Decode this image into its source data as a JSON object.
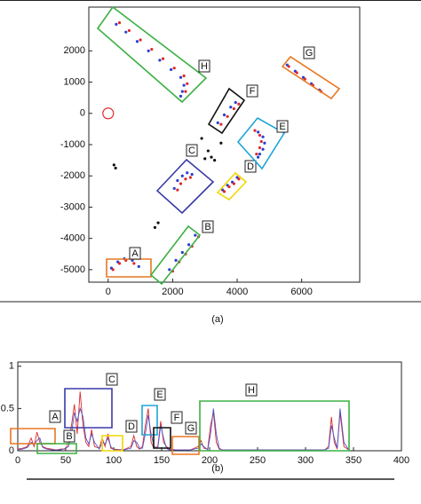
{
  "chart_data": [
    {
      "type": "scatter",
      "caption": "(a)",
      "xlim": [
        -600,
        7800
      ],
      "ylim": [
        -5400,
        3400
      ],
      "xticks": [
        0,
        2000,
        4000,
        6000
      ],
      "yticks": [
        -5000,
        -4000,
        -3000,
        -2000,
        -1000,
        0,
        1000,
        2000
      ],
      "grid": false,
      "series": [
        {
          "color": "#2b3fd1",
          "marker": "dot",
          "x": [
            250,
            550,
            900,
            1250,
            1600,
            1950,
            2250,
            2350,
            2300,
            2250,
            3400,
            3600,
            3800,
            3950,
            5550,
            5800,
            6050,
            6300,
            6550,
            4650,
            4800,
            4850,
            4800,
            4700,
            4650,
            3550,
            3700,
            3850,
            4000,
            2050,
            2150,
            2300,
            2450,
            2600,
            1900,
            2100,
            2300,
            2500,
            2700,
            100,
            300,
            500,
            750,
            950
          ],
          "y": [
            2850,
            2600,
            2300,
            2000,
            1700,
            1400,
            1150,
            900,
            700,
            550,
            -300,
            -50,
            200,
            350,
            1550,
            1350,
            1150,
            950,
            750,
            -600,
            -750,
            -950,
            -1150,
            -1300,
            -1400,
            -2450,
            -2300,
            -2200,
            -2050,
            -2400,
            -2150,
            -2000,
            -1900,
            -1950,
            -5000,
            -4700,
            -4450,
            -4200,
            -3900,
            -4950,
            -4750,
            -4650,
            -4700,
            -4900
          ]
        },
        {
          "color": "#e0282c",
          "marker": "dot",
          "x": [
            350,
            650,
            1000,
            1350,
            1700,
            2050,
            2350,
            2450,
            2400,
            3500,
            3700,
            3900,
            4050,
            5600,
            5850,
            6100,
            6350,
            6600,
            4550,
            4700,
            4750,
            4700,
            4600,
            3600,
            3750,
            3900,
            4050,
            2150,
            2250,
            2400,
            2550,
            2000,
            2200,
            2400,
            2600,
            2800,
            150,
            350,
            550,
            800
          ],
          "y": [
            2900,
            2650,
            2350,
            2050,
            1750,
            1450,
            1200,
            950,
            700,
            -350,
            -100,
            150,
            300,
            1500,
            1300,
            1100,
            900,
            700,
            -550,
            -700,
            -900,
            -1100,
            -1300,
            -2500,
            -2350,
            -2250,
            -2100,
            -2450,
            -2250,
            -2100,
            -2050,
            -5050,
            -4750,
            -4500,
            -4250,
            -3950,
            -5000,
            -4800,
            -4700,
            -4800
          ]
        },
        {
          "color": "#111111",
          "marker": "dot",
          "x": [
            180,
            230,
            1450,
            1550,
            3000,
            3100,
            3200,
            3300,
            2900,
            3500
          ],
          "y": [
            -1650,
            -1750,
            -3650,
            -3500,
            -1450,
            -1200,
            -1400,
            -1500,
            -800,
            -950
          ]
        },
        {
          "color": "#e0282c",
          "marker": "open",
          "x": [
            0
          ],
          "y": [
            0
          ]
        }
      ],
      "annotations": [
        {
          "label": "A",
          "color": "#e87722"
        },
        {
          "label": "B",
          "color": "#3cb043"
        },
        {
          "label": "C",
          "color": "#3a3aa8"
        },
        {
          "label": "D",
          "color": "#f2d600"
        },
        {
          "label": "E",
          "color": "#1ea5d6"
        },
        {
          "label": "F",
          "color": "#111111"
        },
        {
          "label": "G",
          "color": "#e87722"
        },
        {
          "label": "H",
          "color": "#3cb043"
        }
      ]
    },
    {
      "type": "line",
      "caption": "(b)",
      "xlim": [
        0,
        400
      ],
      "ylim": [
        0,
        1.05
      ],
      "xticks": [
        0,
        50,
        100,
        150,
        200,
        250,
        300,
        350,
        400
      ],
      "yticks": [
        0,
        0.5,
        1
      ],
      "x": [
        0,
        5,
        10,
        14,
        17,
        20,
        23,
        26,
        30,
        35,
        40,
        45,
        50,
        53,
        56,
        59,
        62,
        65,
        68,
        71,
        74,
        77,
        80,
        85,
        88,
        91,
        94,
        97,
        100,
        110,
        118,
        121,
        124,
        127,
        130,
        133,
        136,
        139,
        142,
        146,
        149,
        152,
        155,
        158,
        165,
        180,
        188,
        191,
        194,
        198,
        201,
        204,
        207,
        210,
        213,
        220,
        260,
        300,
        320,
        324,
        327,
        330,
        333,
        336,
        340,
        345
      ],
      "series": [
        {
          "color": "#e0282c",
          "values": [
            0.02,
            0.03,
            0.05,
            0.15,
            0.05,
            0.22,
            0.1,
            0.05,
            0.03,
            0.02,
            0.01,
            0.02,
            0.02,
            0.1,
            0.3,
            0.55,
            0.2,
            0.7,
            0.3,
            0.1,
            0.05,
            0.25,
            0.05,
            0.03,
            0.15,
            0.05,
            0.2,
            0.03,
            0.02,
            0.01,
            0.05,
            0.18,
            0.05,
            0.02,
            0.05,
            0.3,
            0.5,
            0.1,
            0.03,
            0.05,
            0.35,
            0.1,
            0.05,
            0.02,
            0.01,
            0.01,
            0.05,
            0.12,
            0.03,
            0.02,
            0.3,
            0.45,
            0.1,
            0.02,
            0.01,
            0.01,
            0.01,
            0.01,
            0.01,
            0.05,
            0.4,
            0.1,
            0.02,
            0.45,
            0.05,
            0.01
          ]
        },
        {
          "color": "#4a56c8",
          "values": [
            0.01,
            0.02,
            0.04,
            0.1,
            0.08,
            0.12,
            0.15,
            0.04,
            0.02,
            0.01,
            0.01,
            0.01,
            0.03,
            0.05,
            0.2,
            0.45,
            0.35,
            0.5,
            0.4,
            0.15,
            0.08,
            0.2,
            0.1,
            0.02,
            0.1,
            0.08,
            0.15,
            0.05,
            0.01,
            0.01,
            0.03,
            0.12,
            0.1,
            0.03,
            0.03,
            0.2,
            0.42,
            0.2,
            0.05,
            0.03,
            0.3,
            0.15,
            0.03,
            0.01,
            0.01,
            0.01,
            0.03,
            0.08,
            0.05,
            0.01,
            0.2,
            0.5,
            0.2,
            0.03,
            0.01,
            0.01,
            0.01,
            0.01,
            0.01,
            0.03,
            0.3,
            0.15,
            0.03,
            0.5,
            0.1,
            0.01
          ]
        }
      ],
      "annotations": [
        {
          "label": "A",
          "color": "#e87722"
        },
        {
          "label": "B",
          "color": "#3cb043"
        },
        {
          "label": "C",
          "color": "#3a3aa8"
        },
        {
          "label": "D",
          "color": "#f2d600"
        },
        {
          "label": "E",
          "color": "#1ea5d6"
        },
        {
          "label": "F",
          "color": "#111111"
        },
        {
          "label": "G",
          "color": "#e87722"
        },
        {
          "label": "H",
          "color": "#3cb043"
        }
      ]
    }
  ]
}
